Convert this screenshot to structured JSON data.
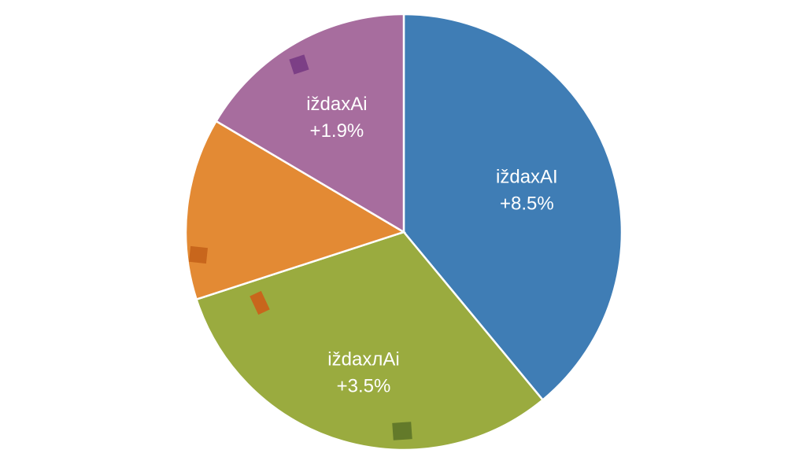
{
  "chart_data": {
    "type": "pie",
    "title": "",
    "slices": [
      {
        "label": "iždaxAI",
        "value_label": "+8.5%",
        "share": 0.39,
        "color": "#3f7db5"
      },
      {
        "label": "iždaxлAi",
        "value_label": "+3.5%",
        "share": 0.31,
        "color": "#9aab3f"
      },
      {
        "label": "",
        "value_label": "",
        "share": 0.135,
        "color": "#e38a34"
      },
      {
        "label": "iždaxAi",
        "value_label": "+1.9%",
        "share": 0.165,
        "color": "#a76d9e"
      }
    ],
    "legend": "none",
    "grid": false
  }
}
